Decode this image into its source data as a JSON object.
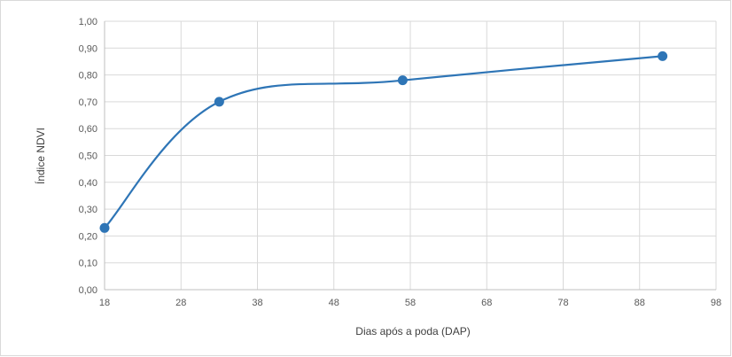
{
  "chart_data": {
    "type": "line",
    "xlabel": "Dias após a poda (DAP)",
    "ylabel": "Índice NDVI",
    "xlim": [
      18,
      98
    ],
    "ylim": [
      0,
      1
    ],
    "x_ticks": [
      "18",
      "28",
      "38",
      "48",
      "58",
      "68",
      "78",
      "88",
      "98"
    ],
    "y_ticks": [
      "0,00",
      "0,10",
      "0,20",
      "0,30",
      "0,40",
      "0,50",
      "0,60",
      "0,70",
      "0,80",
      "0,90",
      "1,00"
    ],
    "grid": true,
    "smoothed": true,
    "series": [
      {
        "x": [
          18,
          33,
          57,
          91
        ],
        "y": [
          0.23,
          0.7,
          0.78,
          0.87
        ],
        "color": "#2e75b6"
      }
    ]
  }
}
